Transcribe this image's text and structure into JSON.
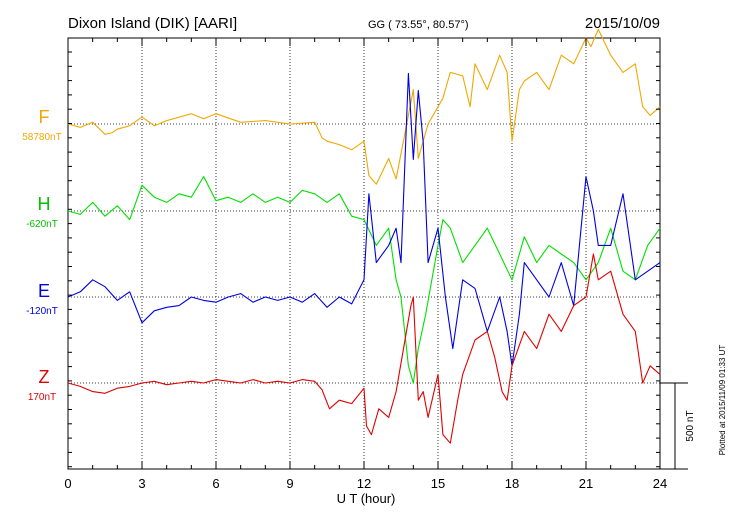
{
  "header": {
    "station": "Dixon Island (DIK)  [AARI]",
    "coords": "GG ( 73.55°,  80.57°)",
    "date": "2015/10/09"
  },
  "footer": {
    "plotted": "Plotted at 2015/11/09 01:33 UT"
  },
  "chart_data": {
    "type": "line",
    "xlabel": "U T (hour)",
    "xlim": [
      0,
      24
    ],
    "x_ticks": [
      "0",
      "3",
      "6",
      "9",
      "12",
      "15",
      "18",
      "21",
      "24"
    ],
    "grid": true,
    "scale_bar": "500 nT",
    "series": [
      {
        "name": "F",
        "baseline": "58780nT",
        "color": "#f0a800",
        "x": [
          0,
          0.5,
          1,
          1.5,
          1.8,
          2,
          2.5,
          3,
          3.5,
          4,
          5,
          5.5,
          6,
          7,
          8,
          9,
          10,
          10.3,
          10.5,
          11,
          11.5,
          12,
          12.2,
          12.5,
          13,
          13.3,
          13.8,
          14,
          14.2,
          14.4,
          14.6,
          15,
          15.2,
          15.5,
          16,
          16.3,
          16.5,
          17,
          17.5,
          17.8,
          18,
          18.3,
          18.5,
          19,
          19.5,
          20,
          20.5,
          21,
          21.2,
          21.5,
          22,
          22.5,
          23,
          23.3,
          23.6,
          24
        ],
        "y": [
          0,
          -20,
          10,
          -60,
          -50,
          -30,
          -10,
          40,
          -10,
          20,
          60,
          30,
          60,
          10,
          20,
          0,
          10,
          -80,
          -100,
          -120,
          -150,
          -100,
          -300,
          -350,
          -200,
          -320,
          50,
          200,
          -200,
          -100,
          0,
          100,
          150,
          300,
          280,
          100,
          350,
          200,
          400,
          300,
          -100,
          200,
          250,
          300,
          200,
          400,
          350,
          500,
          450,
          550,
          400,
          300,
          350,
          100,
          50,
          100
        ]
      },
      {
        "name": "H",
        "baseline": "-620nT",
        "color": "#00e000",
        "x": [
          0,
          0.5,
          1,
          1.5,
          2,
          2.5,
          3,
          3.5,
          4,
          4.5,
          5,
          5.5,
          6,
          6.5,
          7,
          7.5,
          8,
          8.5,
          9,
          9.5,
          10,
          10.5,
          11,
          11.5,
          12,
          12.5,
          13,
          13.3,
          13.5,
          13.8,
          14,
          14.2,
          14.5,
          15,
          15.2,
          15.5,
          16,
          16.5,
          17,
          17.5,
          18,
          18.5,
          19,
          19.5,
          20,
          20.5,
          21,
          21.5,
          22,
          22.5,
          23,
          23.5,
          24
        ],
        "y": [
          0,
          -20,
          50,
          -30,
          30,
          -50,
          150,
          80,
          50,
          100,
          80,
          200,
          60,
          80,
          50,
          100,
          50,
          80,
          50,
          120,
          100,
          50,
          100,
          -30,
          -50,
          -200,
          -100,
          -400,
          -500,
          -900,
          -1000,
          -800,
          -600,
          -200,
          -50,
          -100,
          -300,
          -200,
          -100,
          -250,
          -400,
          -150,
          -300,
          -200,
          -250,
          -300,
          -400,
          -300,
          -100,
          -350,
          -400,
          -200,
          -100
        ]
      },
      {
        "name": "E",
        "baseline": "-120nT",
        "color": "#0000e0",
        "x": [
          0,
          0.5,
          1,
          1.5,
          2,
          2.5,
          3,
          3.5,
          4,
          4.5,
          5,
          5.5,
          6,
          6.5,
          7,
          7.5,
          8,
          8.5,
          9,
          9.5,
          10,
          10.5,
          11,
          11.5,
          12,
          12.2,
          12.5,
          13,
          13.3,
          13.5,
          13.8,
          14,
          14.2,
          14.4,
          14.6,
          15,
          15.3,
          15.6,
          16,
          16.5,
          17,
          17.5,
          17.8,
          18,
          18.3,
          18.5,
          19,
          19.5,
          20,
          20.5,
          21,
          21.3,
          21.5,
          22,
          22.5,
          23,
          23.5,
          24
        ],
        "y": [
          0,
          30,
          100,
          60,
          -20,
          30,
          -150,
          -80,
          -60,
          -50,
          0,
          -20,
          -30,
          0,
          20,
          -30,
          0,
          -20,
          0,
          -30,
          20,
          -60,
          0,
          -40,
          100,
          600,
          200,
          300,
          400,
          200,
          1300,
          800,
          1200,
          900,
          200,
          400,
          0,
          -300,
          100,
          50,
          -200,
          0,
          -200,
          -400,
          -100,
          200,
          100,
          0,
          200,
          -50,
          700,
          500,
          300,
          300,
          600,
          100,
          150,
          200
        ]
      },
      {
        "name": "Z",
        "baseline": "170nT",
        "color": "#e00000",
        "x": [
          0,
          0.5,
          1,
          1.5,
          2,
          2.5,
          3,
          3.5,
          4,
          4.5,
          5,
          5.5,
          6,
          6.5,
          7,
          7.5,
          8,
          8.5,
          9,
          9.5,
          10,
          10.3,
          10.6,
          11,
          11.5,
          12,
          12.1,
          12.3,
          12.6,
          13,
          13.3,
          13.6,
          13.9,
          14,
          14.2,
          14.4,
          14.6,
          15,
          15.2,
          15.5,
          15.8,
          16,
          16.5,
          17,
          17.3,
          17.6,
          17.8,
          18,
          18.5,
          19,
          19.5,
          20,
          20.5,
          21,
          21.3,
          21.5,
          22,
          22.5,
          23,
          23.3,
          23.6,
          24
        ],
        "y": [
          0,
          -20,
          -50,
          -60,
          -30,
          -20,
          0,
          10,
          -10,
          0,
          10,
          0,
          20,
          10,
          0,
          20,
          0,
          10,
          0,
          20,
          10,
          -40,
          -150,
          -100,
          -120,
          -30,
          -250,
          -300,
          -150,
          -200,
          -50,
          200,
          450,
          500,
          -100,
          -50,
          -200,
          50,
          -300,
          -350,
          -100,
          50,
          250,
          300,
          150,
          -50,
          -100,
          100,
          300,
          200,
          400,
          300,
          450,
          500,
          750,
          600,
          650,
          400,
          300,
          0,
          100,
          50
        ]
      }
    ]
  }
}
